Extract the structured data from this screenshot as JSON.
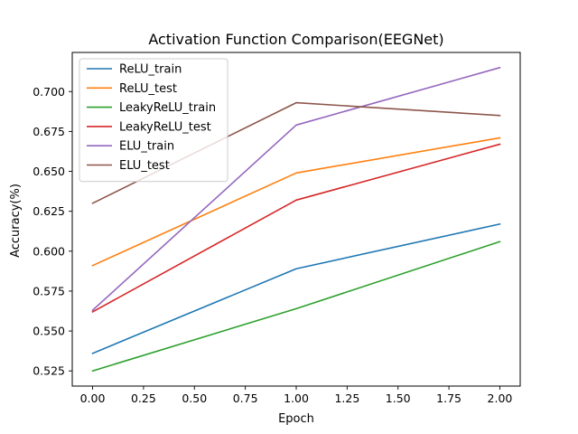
{
  "chart_data": {
    "type": "line",
    "title": "Activation Function Comparison(EEGNet)",
    "xlabel": "Epoch",
    "ylabel": "Accuracy(%)",
    "x": [
      0,
      1,
      2
    ],
    "xlim": [
      -0.1,
      2.1
    ],
    "ylim": [
      0.5155,
      0.7245
    ],
    "xticks": [
      0.0,
      0.25,
      0.5,
      0.75,
      1.0,
      1.25,
      1.5,
      1.75,
      2.0
    ],
    "xtick_labels": [
      "0.00",
      "0.25",
      "0.50",
      "0.75",
      "1.00",
      "1.25",
      "1.50",
      "1.75",
      "2.00"
    ],
    "yticks": [
      0.525,
      0.55,
      0.575,
      0.6,
      0.625,
      0.65,
      0.675,
      0.7
    ],
    "ytick_labels": [
      "0.525",
      "0.550",
      "0.575",
      "0.600",
      "0.625",
      "0.650",
      "0.675",
      "0.700"
    ],
    "grid": false,
    "legend_position": "top-left",
    "series": [
      {
        "name": "ReLU_train",
        "color": "#1f77b4",
        "values": [
          0.536,
          0.589,
          0.617
        ]
      },
      {
        "name": "ReLU_test",
        "color": "#ff7f0e",
        "values": [
          0.591,
          0.649,
          0.671
        ]
      },
      {
        "name": "LeakyReLU_train",
        "color": "#2ca02c",
        "values": [
          0.525,
          0.564,
          0.606
        ]
      },
      {
        "name": "LeakyReLU_test",
        "color": "#d62728",
        "values": [
          0.562,
          0.632,
          0.667
        ]
      },
      {
        "name": "ELU_train",
        "color": "#9467bd",
        "values": [
          0.563,
          0.679,
          0.715
        ]
      },
      {
        "name": "ELU_test",
        "color": "#8c564b",
        "values": [
          0.63,
          0.693,
          0.685
        ]
      }
    ]
  }
}
